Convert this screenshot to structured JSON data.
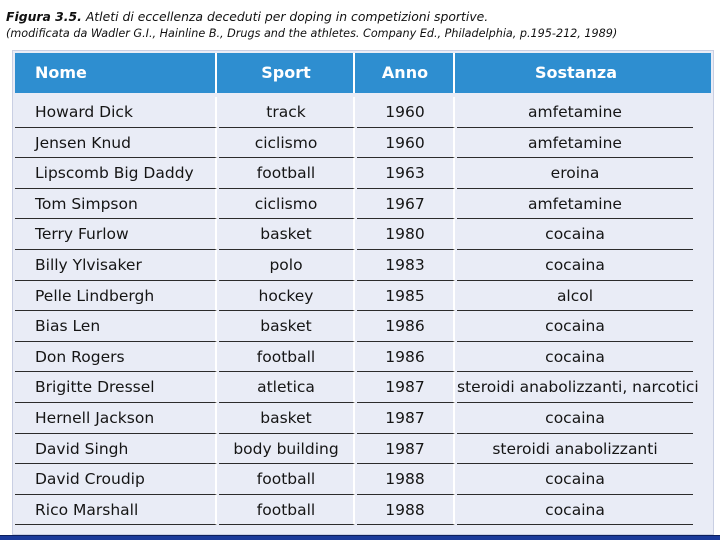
{
  "caption": {
    "figure_label": "Figura 3.5.",
    "title": "Atleti di eccellenza deceduti per doping in competizioni sportive.",
    "source": "(modificata da Wadler G.I., Hainline B., Drugs and the athletes. Company Ed., Philadelphia, p.195-212, 1989)"
  },
  "table": {
    "columns": [
      "Nome",
      "Sport",
      "Anno",
      "Sostanza"
    ],
    "rows": [
      [
        "Howard Dick",
        "track",
        "1960",
        "amfetamine"
      ],
      [
        "Jensen Knud",
        "ciclismo",
        "1960",
        "amfetamine"
      ],
      [
        "Lipscomb Big Daddy",
        "football",
        "1963",
        "eroina"
      ],
      [
        "Tom Simpson",
        "ciclismo",
        "1967",
        "amfetamine"
      ],
      [
        "Terry Furlow",
        "basket",
        "1980",
        "cocaina"
      ],
      [
        "Billy Ylvisaker",
        "polo",
        "1983",
        "cocaina"
      ],
      [
        "Pelle Lindbergh",
        "hockey",
        "1985",
        "alcol"
      ],
      [
        "Bias Len",
        "basket",
        "1986",
        "cocaina"
      ],
      [
        "Don Rogers",
        "football",
        "1986",
        "cocaina"
      ],
      [
        "Brigitte Dressel",
        "atletica",
        "1987",
        "steroidi anabolizzanti, narcotici"
      ],
      [
        "Hernell Jackson",
        "basket",
        "1987",
        "cocaina"
      ],
      [
        "David Singh",
        "body building",
        "1987",
        "steroidi anabolizzanti"
      ],
      [
        "David Croudip",
        "football",
        "1988",
        "cocaina"
      ],
      [
        "Rico Marshall",
        "football",
        "1988",
        "cocaina"
      ]
    ]
  },
  "colors": {
    "header_bg": "#2e8ed0",
    "panel_bg": "#e9ecf6",
    "slide_bg": "#0c1f5c"
  }
}
